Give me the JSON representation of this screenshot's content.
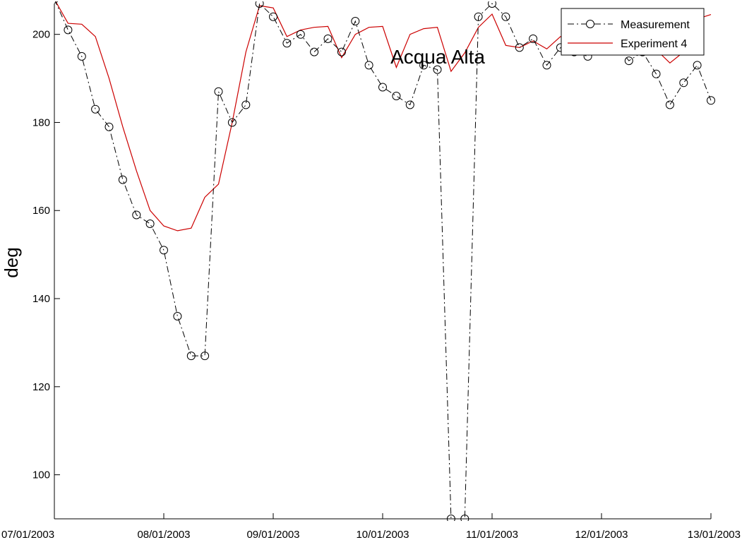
{
  "chart_data": {
    "type": "line",
    "title": "Acqua Alta",
    "xlabel": "",
    "ylabel": "deg",
    "xlim": [
      "07/01/2003",
      "13/01/2003"
    ],
    "ylim": [
      90,
      207
    ],
    "x_ticks": [
      "07/01/2003",
      "08/01/2003",
      "09/01/2003",
      "10/01/2003",
      "11/01/2003",
      "12/01/2003",
      "13/01/2003"
    ],
    "y_ticks": [
      100,
      120,
      140,
      160,
      180,
      200
    ],
    "legend": {
      "position": "top-right",
      "entries": [
        "Measurement",
        "Experiment 4"
      ]
    },
    "grid": false,
    "colors": {
      "measurement": "#000000",
      "experiment": "#cc0000"
    },
    "series": [
      {
        "name": "Measurement",
        "style": "dash-dot with circle markers",
        "x": [
          "07/01/2003 00:00",
          "07/01/2003 03:00",
          "07/01/2003 06:00",
          "07/01/2003 09:00",
          "07/01/2003 12:00",
          "07/01/2003 15:00",
          "07/01/2003 18:00",
          "07/01/2003 21:00",
          "08/01/2003 00:00",
          "08/01/2003 03:00",
          "08/01/2003 06:00",
          "08/01/2003 09:00",
          "08/01/2003 12:00",
          "08/01/2003 15:00",
          "08/01/2003 18:00",
          "08/01/2003 21:00",
          "09/01/2003 00:00",
          "09/01/2003 03:00",
          "09/01/2003 06:00",
          "09/01/2003 09:00",
          "09/01/2003 12:00",
          "09/01/2003 15:00",
          "09/01/2003 18:00",
          "09/01/2003 21:00",
          "10/01/2003 00:00",
          "10/01/2003 03:00",
          "10/01/2003 06:00",
          "10/01/2003 09:00",
          "10/01/2003 12:00",
          "10/01/2003 15:00",
          "10/01/2003 18:00",
          "10/01/2003 21:00",
          "11/01/2003 00:00",
          "11/01/2003 03:00",
          "11/01/2003 06:00",
          "11/01/2003 09:00",
          "11/01/2003 12:00",
          "11/01/2003 15:00",
          "11/01/2003 18:00",
          "11/01/2003 21:00",
          "12/01/2003 00:00",
          "12/01/2003 03:00",
          "12/01/2003 06:00",
          "12/01/2003 09:00",
          "12/01/2003 12:00",
          "12/01/2003 15:00",
          "12/01/2003 18:00",
          "12/01/2003 21:00",
          "13/01/2003 00:00"
        ],
        "values": [
          208,
          201,
          195,
          183,
          179,
          167,
          159,
          157,
          151,
          136,
          127,
          127,
          187,
          180,
          184,
          207,
          204,
          198,
          200,
          196,
          199,
          196,
          203,
          193,
          188,
          186,
          184,
          193,
          192,
          90,
          90,
          204,
          207,
          204,
          197,
          199,
          193,
          197,
          196,
          195,
          199,
          198,
          194,
          196,
          191,
          184,
          189,
          193,
          185
        ]
      },
      {
        "name": "Experiment 4",
        "style": "solid",
        "x": [
          "07/01/2003 00:00",
          "07/01/2003 03:00",
          "07/01/2003 06:00",
          "07/01/2003 09:00",
          "07/01/2003 12:00",
          "07/01/2003 15:00",
          "07/01/2003 18:00",
          "07/01/2003 21:00",
          "08/01/2003 00:00",
          "08/01/2003 03:00",
          "08/01/2003 06:00",
          "08/01/2003 09:00",
          "08/01/2003 12:00",
          "08/01/2003 15:00",
          "08/01/2003 18:00",
          "08/01/2003 21:00",
          "09/01/2003 00:00",
          "09/01/2003 03:00",
          "09/01/2003 06:00",
          "09/01/2003 09:00",
          "09/01/2003 12:00",
          "09/01/2003 15:00",
          "09/01/2003 18:00",
          "09/01/2003 21:00",
          "10/01/2003 00:00",
          "10/01/2003 03:00",
          "10/01/2003 06:00",
          "10/01/2003 09:00",
          "10/01/2003 12:00",
          "10/01/2003 15:00",
          "10/01/2003 18:00",
          "10/01/2003 21:00",
          "11/01/2003 00:00",
          "11/01/2003 03:00",
          "11/01/2003 06:00",
          "11/01/2003 09:00",
          "11/01/2003 12:00",
          "11/01/2003 15:00",
          "11/01/2003 18:00",
          "11/01/2003 21:00",
          "12/01/2003 00:00",
          "12/01/2003 03:00",
          "12/01/2003 06:00",
          "12/01/2003 09:00",
          "12/01/2003 12:00",
          "12/01/2003 15:00",
          "12/01/2003 18:00",
          "12/01/2003 21:00",
          "13/01/2003 00:00"
        ],
        "values": [
          208,
          202.5,
          202.3,
          199.5,
          190,
          179,
          169,
          160,
          156.5,
          155.4,
          156,
          163,
          166,
          180,
          196,
          206.5,
          206,
          199.5,
          201,
          201.6,
          201.8,
          194.7,
          200,
          201.6,
          201.8,
          192.5,
          200,
          201.3,
          201.6,
          191.6,
          195.8,
          201.6,
          204.6,
          197.5,
          197,
          198.5,
          196.7,
          199.5,
          198.6,
          198.8,
          199.5,
          198,
          197,
          196,
          196.5,
          193.5,
          196,
          203.5,
          204.5
        ]
      }
    ]
  }
}
